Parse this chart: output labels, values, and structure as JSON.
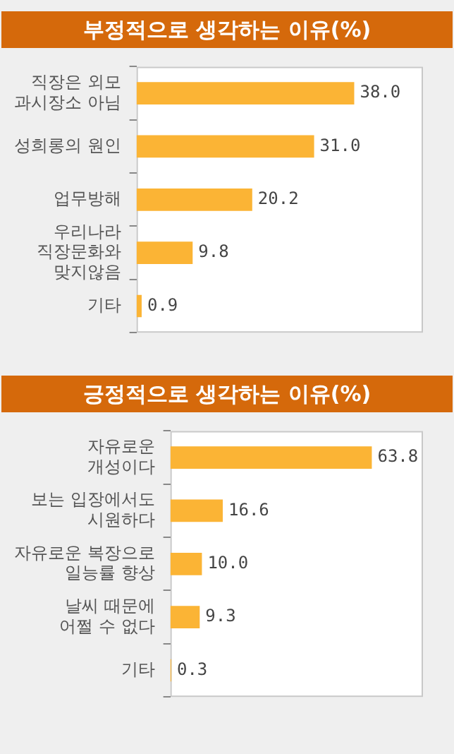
{
  "chart_data": [
    {
      "type": "bar",
      "orientation": "horizontal",
      "title": "부정적으로 생각하는 이유(%)",
      "categories": [
        "직장은 외모\n과시장소 아님",
        "성희롱의 원인",
        "업무방해",
        "우리나라\n직장문화와\n맞지않음",
        "기타"
      ],
      "values": [
        38.0,
        31.0,
        20.2,
        9.8,
        0.9
      ],
      "value_labels": [
        "38.0",
        "31.0",
        "20.2",
        "9.8",
        "0.9"
      ],
      "color": "#fbb435",
      "grid": false,
      "legend": false
    },
    {
      "type": "bar",
      "orientation": "horizontal",
      "title": "긍정적으로 생각하는 이유(%)",
      "categories": [
        "자유로운\n개성이다",
        "보는 입장에서도\n시원하다",
        "자유로운 복장으로\n일능률 향상",
        "날씨 때문에\n어쩔 수 없다",
        "기타"
      ],
      "values": [
        63.8,
        16.6,
        10.0,
        9.3,
        0.3
      ],
      "value_labels": [
        "63.8",
        "16.6",
        "10.0",
        "9.3",
        "0.3"
      ],
      "color": "#fbb435",
      "grid": false,
      "legend": false
    }
  ]
}
